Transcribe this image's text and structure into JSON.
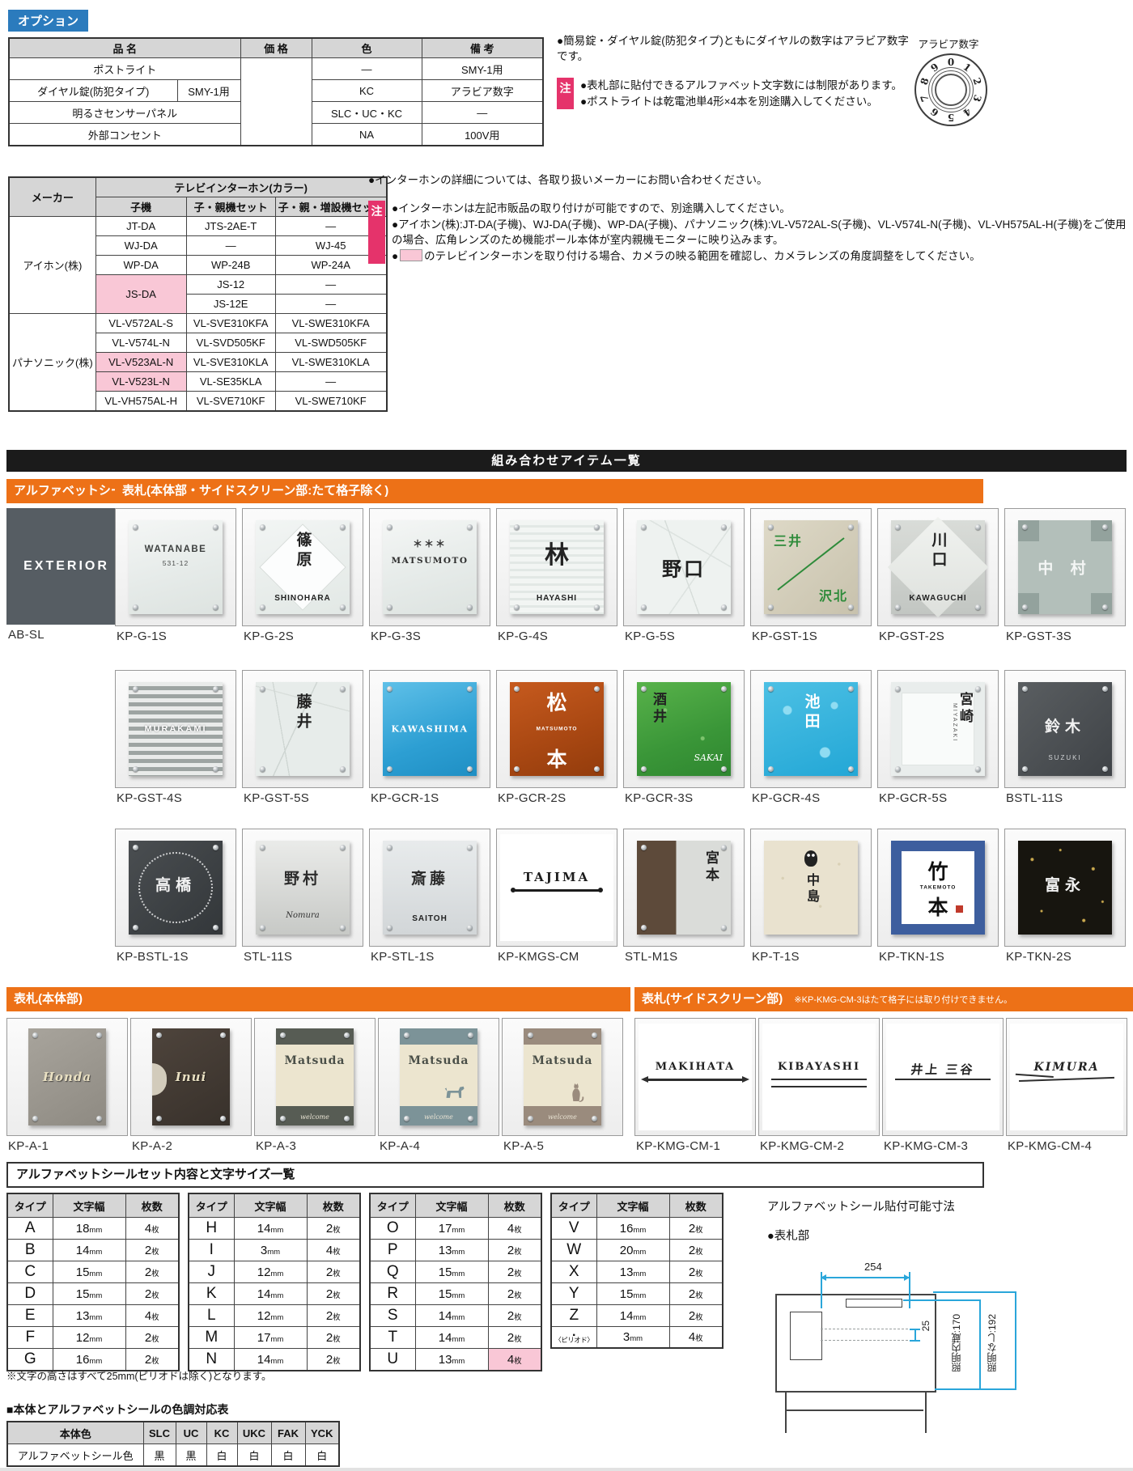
{
  "colors": {
    "accent_blue": "#2b7bbd",
    "accent_orange": "#ed7117",
    "note_pink": "#e5336b",
    "highlight_pink": "#f9c7d6",
    "header_gray": "#d6d6d6",
    "dim_cyan": "#2aa6da"
  },
  "option": {
    "tag": "オプション",
    "table": {
      "headers": [
        "品 名",
        "価 格",
        "色",
        "備 考"
      ],
      "rows": [
        {
          "name": "ポストライト",
          "sub": "",
          "color": "—",
          "note": "SMY-1用"
        },
        {
          "name": "ダイヤル錠(防犯タイプ)",
          "sub": "SMY-1用",
          "color": "KC",
          "note": "アラビア数字"
        },
        {
          "name": "明るさセンサーパネル",
          "sub": "",
          "color": "SLC・UC・KC",
          "note": "—"
        },
        {
          "name": "外部コンセント",
          "sub": "",
          "color": "NA",
          "note": "100V用"
        }
      ]
    },
    "note_plain": "●簡易錠・ダイヤル錠(防犯タイプ)ともにダイヤルの数字はアラビア数字です。",
    "badge": "注",
    "badge_notes": [
      "●表札部に貼付できるアルファベット文字数には制限があります。",
      "●ポストライトは乾電池単4形×4本を別途購入してください。"
    ],
    "dial": {
      "label": "アラビア数字",
      "digits": [
        "0",
        "1",
        "2",
        "3",
        "4",
        "5",
        "6",
        "7",
        "8",
        "9"
      ]
    }
  },
  "intercom": {
    "table": {
      "maker_header": "メーカー",
      "group_header": "テレビインターホン(カラー)",
      "col_headers": [
        "子機",
        "子・親機セット",
        "子・親・増設機セット"
      ],
      "makers": [
        {
          "name": "アイホン(株)",
          "rows": [
            {
              "cells": [
                "JT-DA",
                "JTS-2AE-T",
                "—"
              ]
            },
            {
              "cells": [
                "WJ-DA",
                "—",
                "WJ-45"
              ]
            },
            {
              "cells": [
                "WP-DA",
                "WP-24B",
                "WP-24A"
              ]
            },
            {
              "cells": [
                "JS-DA",
                "JS-12",
                "—"
              ],
              "pink": [
                0
              ],
              "rowspan0": 2
            },
            {
              "cells": [
                "JS-12E",
                "—"
              ],
              "cont": true
            }
          ]
        },
        {
          "name": "パナソニック(株)",
          "rows": [
            {
              "cells": [
                "VL-V572AL-S",
                "VL-SVE310KFA",
                "VL-SWE310KFA"
              ]
            },
            {
              "cells": [
                "VL-V574L-N",
                "VL-SVD505KF",
                "VL-SWD505KF"
              ]
            },
            {
              "cells": [
                "VL-V523AL-N",
                "VL-SVE310KLA",
                "VL-SWE310KLA"
              ],
              "pink": [
                0
              ]
            },
            {
              "cells": [
                "VL-V523L-N",
                "VL-SE35KLA",
                "—"
              ],
              "pink": [
                0
              ]
            },
            {
              "cells": [
                "VL-VH575AL-H",
                "VL-SVE710KF",
                "VL-SWE710KF"
              ]
            }
          ]
        }
      ]
    },
    "note_plain": "●インターホンの詳細については、各取り扱いメーカーにお問い合わせください。",
    "badge": "注",
    "badge_notes": [
      "●インターホンは左記市販品の取り付けが可能ですので、別途購入してください。",
      "●アイホン(株):JT-DA(子機)、WJ-DA(子機)、WP-DA(子機)、パナソニック(株):VL-V572AL-S(子機)、VL-V574L-N(子機)、VL-VH575AL-H(子機)をご使用の場合、広角レンズのため機能ポール本体が室内親機モニターに映り込みます。"
    ],
    "swatch_note_pre": "●",
    "swatch_note_post": "のテレビインターホンを取り付ける場合、カメラの映る範囲を確認し、カメラレンズの角度調整をしてください。"
  },
  "sections": {
    "combined": "組み合わせアイテム一覧",
    "alpha_seal": "アルファベットシール",
    "hyosatsu_all": "表札(本体部・サイドスクリーン部:たて格子除く)",
    "hyosatsu_main": "表札(本体部)",
    "hyosatsu_side": "表札(サイドスクリーン部)",
    "side_note": "※KP-KMG-CM-3はたて格子には取り付けできません。"
  },
  "plates": {
    "row1": [
      {
        "code": "AB-SL",
        "texts": [
          "EXTERIOR"
        ]
      },
      {
        "code": "KP-G-1S",
        "texts": [
          "WATANABE",
          "531-12"
        ]
      },
      {
        "code": "KP-G-2S",
        "texts": [
          "篠原",
          "SHINOHARA"
        ]
      },
      {
        "code": "KP-G-3S",
        "texts": [
          "＊＊＊",
          "MATSUMOTO"
        ]
      },
      {
        "code": "KP-G-4S",
        "texts": [
          "林",
          "HAYASHI"
        ]
      },
      {
        "code": "KP-G-5S",
        "texts": [
          "野口"
        ]
      },
      {
        "code": "KP-GST-1S",
        "texts": [
          "三井",
          "沢北"
        ]
      },
      {
        "code": "KP-GST-2S",
        "texts": [
          "川口",
          "KAWAGUCHI"
        ]
      },
      {
        "code": "KP-GST-3S",
        "texts": [
          "中 村"
        ]
      }
    ],
    "row2": [
      {
        "code": "KP-GST-4S",
        "texts": [
          "MURAKAMI"
        ]
      },
      {
        "code": "KP-GST-5S",
        "texts": [
          "藤井"
        ]
      },
      {
        "code": "KP-GCR-1S",
        "texts": [
          "KAWASHIMA"
        ]
      },
      {
        "code": "KP-GCR-2S",
        "texts": [
          "松本",
          "MATSUMOTO"
        ]
      },
      {
        "code": "KP-GCR-3S",
        "texts": [
          "酒井",
          "SAKAI"
        ]
      },
      {
        "code": "KP-GCR-4S",
        "texts": [
          "池田"
        ]
      },
      {
        "code": "KP-GCR-5S",
        "texts": [
          "宮崎",
          "MIYAZAKI"
        ]
      },
      {
        "code": "BSTL-11S",
        "texts": [
          "鈴木",
          "SUZUKI"
        ]
      }
    ],
    "row3": [
      {
        "code": "KP-BSTL-1S",
        "texts": [
          "高橋"
        ]
      },
      {
        "code": "STL-11S",
        "texts": [
          "野村",
          "Nomura"
        ]
      },
      {
        "code": "KP-STL-1S",
        "texts": [
          "斎藤",
          "SAITOH"
        ]
      },
      {
        "code": "KP-KMGS-CM",
        "texts": [
          "TAJIMA"
        ]
      },
      {
        "code": "STL-M1S",
        "texts": [
          "宮本"
        ]
      },
      {
        "code": "KP-T-1S",
        "texts": [
          "中島"
        ]
      },
      {
        "code": "KP-TKN-1S",
        "texts": [
          "竹本",
          "TAKEMOTO"
        ]
      },
      {
        "code": "KP-TKN-2S",
        "texts": [
          "富永"
        ]
      }
    ],
    "main": [
      {
        "code": "KP-A-1",
        "texts": [
          "Honda"
        ]
      },
      {
        "code": "KP-A-2",
        "texts": [
          "Inui"
        ]
      },
      {
        "code": "KP-A-3",
        "texts": [
          "Matsuda",
          "welcome"
        ]
      },
      {
        "code": "KP-A-4",
        "texts": [
          "Matsuda",
          "welcome"
        ]
      },
      {
        "code": "KP-A-5",
        "texts": [
          "Matsuda",
          "welcome"
        ]
      }
    ],
    "side": [
      {
        "code": "KP-KMG-CM-1",
        "texts": [
          "MAKIHATA"
        ]
      },
      {
        "code": "KP-KMG-CM-2",
        "texts": [
          "KIBAYASHI"
        ]
      },
      {
        "code": "KP-KMG-CM-3",
        "texts": [
          "井上 三谷"
        ]
      },
      {
        "code": "KP-KMG-CM-4",
        "texts": [
          "KIMURA"
        ]
      }
    ]
  },
  "sizes": {
    "title": "アルファベットシールセット内容と文字サイズ一覧",
    "headers": [
      "タイプ",
      "文字幅",
      "枚数"
    ],
    "tables": [
      [
        [
          "A",
          "18mm",
          "4枚"
        ],
        [
          "B",
          "14mm",
          "2枚"
        ],
        [
          "C",
          "15mm",
          "2枚"
        ],
        [
          "D",
          "15mm",
          "2枚"
        ],
        [
          "E",
          "13mm",
          "4枚"
        ],
        [
          "F",
          "12mm",
          "2枚"
        ],
        [
          "G",
          "16mm",
          "2枚"
        ]
      ],
      [
        [
          "H",
          "14mm",
          "2枚"
        ],
        [
          "I",
          "3mm",
          "4枚"
        ],
        [
          "J",
          "12mm",
          "2枚"
        ],
        [
          "K",
          "14mm",
          "2枚"
        ],
        [
          "L",
          "12mm",
          "2枚"
        ],
        [
          "M",
          "17mm",
          "2枚"
        ],
        [
          "N",
          "14mm",
          "2枚"
        ]
      ],
      [
        [
          "O",
          "17mm",
          "4枚"
        ],
        [
          "P",
          "13mm",
          "2枚"
        ],
        [
          "Q",
          "15mm",
          "2枚"
        ],
        [
          "R",
          "15mm",
          "2枚"
        ],
        [
          "S",
          "14mm",
          "2枚"
        ],
        [
          "T",
          "14mm",
          "2枚"
        ],
        [
          "U",
          "13mm",
          "4枚"
        ]
      ],
      [
        [
          "V",
          "16mm",
          "2枚"
        ],
        [
          "W",
          "20mm",
          "2枚"
        ],
        [
          "X",
          "13mm",
          "2枚"
        ],
        [
          "Y",
          "15mm",
          "2枚"
        ],
        [
          "Z",
          "14mm",
          "2枚"
        ],
        [
          "〈ピリオド〉",
          "3mm",
          "4枚"
        ]
      ]
    ],
    "pink_cells": [
      {
        "table": 2,
        "row": 6,
        "col": 2
      }
    ],
    "period_symbol": ".",
    "note": "※文字の高さはすべて25mm(ピリオドは除く)となります。"
  },
  "diagram": {
    "title": "アルファベットシール貼付可能寸法",
    "sub": "●表札部",
    "dim_width": "254",
    "dim_gap": "25",
    "dim_with_light": "照明内蔵:170",
    "dim_without_light": "照明なし:192"
  },
  "color_map": {
    "title": "■本体とアルファベットシールの色調対応表",
    "rows": [
      [
        "本体色",
        "SLC",
        "UC",
        "KC",
        "UKC",
        "FAK",
        "YCK"
      ],
      [
        "アルファベットシール色",
        "黒",
        "黒",
        "白",
        "白",
        "白",
        "白"
      ]
    ]
  }
}
